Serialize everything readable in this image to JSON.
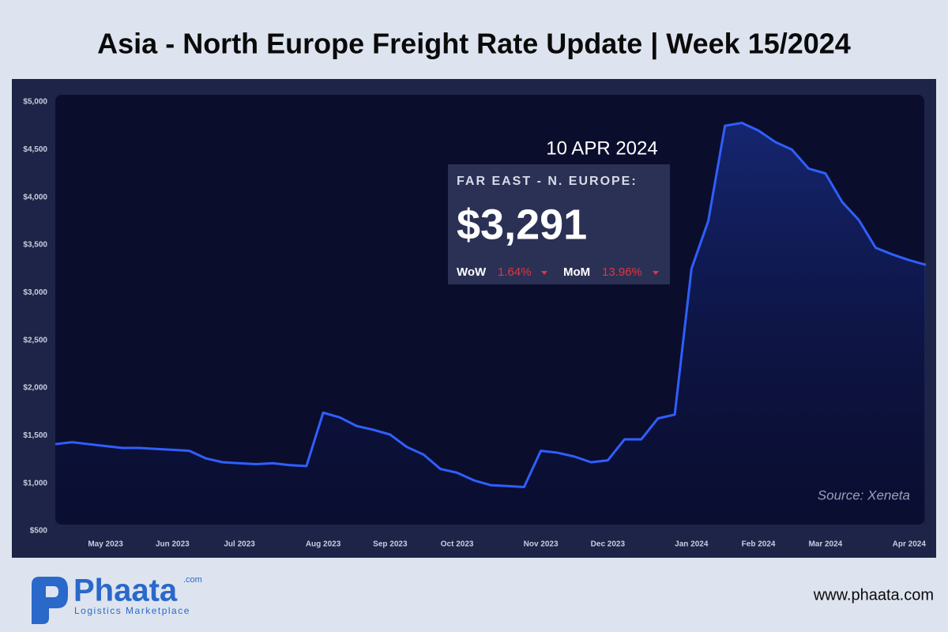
{
  "title": "Asia - North Europe Freight Rate Update | Week 15/2024",
  "chart_data": {
    "type": "line",
    "categories": [
      null,
      null,
      null,
      "May 2023",
      null,
      null,
      null,
      "Jun 2023",
      null,
      null,
      null,
      "Jul 2023",
      null,
      null,
      null,
      null,
      "Aug 2023",
      null,
      null,
      null,
      "Sep 2023",
      null,
      null,
      null,
      "Oct 2023",
      null,
      null,
      null,
      null,
      "Nov 2023",
      null,
      null,
      null,
      "Dec 2023",
      null,
      null,
      null,
      null,
      "Jan 2024",
      null,
      null,
      null,
      "Feb 2024",
      null,
      null,
      null,
      "Mar 2024",
      null,
      null,
      null,
      null,
      "Apr 2024",
      null
    ],
    "series": [
      {
        "name": "Far East - N. Europe",
        "color": "#2f5fff",
        "values": [
          1410,
          1430,
          1410,
          1390,
          1370,
          1370,
          1360,
          1350,
          1340,
          1260,
          1220,
          1210,
          1200,
          1210,
          1190,
          1180,
          1740,
          1690,
          1600,
          1560,
          1510,
          1380,
          1300,
          1150,
          1110,
          1030,
          980,
          970,
          960,
          1340,
          1320,
          1280,
          1220,
          1240,
          1460,
          1460,
          1680,
          1720,
          3250,
          3750,
          4750,
          4780,
          4700,
          4580,
          4500,
          4300,
          4250,
          3950,
          3760,
          3470,
          3400,
          3340,
          3291
        ]
      }
    ],
    "ylim": [
      500,
      5000
    ],
    "yticks": [
      {
        "value": 500,
        "label": "$500"
      },
      {
        "value": 1000,
        "label": "$1,000"
      },
      {
        "value": 1500,
        "label": "$1,500"
      },
      {
        "value": 2000,
        "label": "$2,000"
      },
      {
        "value": 2500,
        "label": "$2,500"
      },
      {
        "value": 3000,
        "label": "$3,000"
      },
      {
        "value": 3500,
        "label": "$3,500"
      },
      {
        "value": 4000,
        "label": "$4,000"
      },
      {
        "value": 4500,
        "label": "$4,500"
      },
      {
        "value": 5000,
        "label": "$5,000"
      }
    ],
    "source": "Source: Xeneta",
    "callout": {
      "date": "10 APR 2024",
      "route": "FAR EAST - N. EUROPE:",
      "value_label": "$3,291",
      "wow_label": "WoW",
      "wow": "1.64%",
      "mom_label": "MoM",
      "mom": "13.96%"
    }
  },
  "footer": {
    "brand": "Phaata",
    "brand_suffix": ".com",
    "tagline": "Logistics Marketplace",
    "url": "www.phaata.com"
  }
}
